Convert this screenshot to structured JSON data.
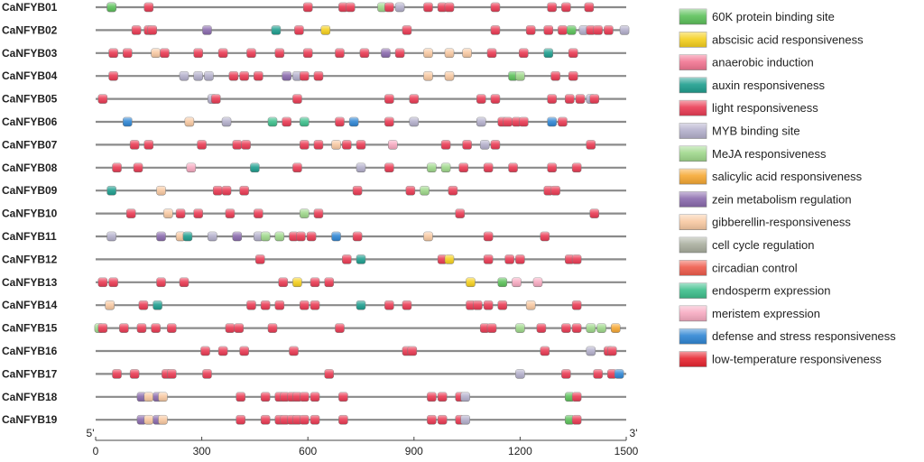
{
  "chart_data": {
    "type": "diagram",
    "xlim": [
      0,
      1500
    ],
    "axis": {
      "ticks": [
        0,
        300,
        600,
        900,
        1200,
        1500
      ],
      "tick_labels": [
        "0",
        "300",
        "600",
        "900",
        "1200",
        "1500"
      ],
      "start_label": "5'",
      "end_label": "3'"
    },
    "element_types": [
      {
        "name": "60K protein binding site",
        "color": "#5cc15a"
      },
      {
        "name": "abscisic acid responsiveness",
        "color": "#f5d01e"
      },
      {
        "name": "anaerobic induction",
        "color": "#f27592"
      },
      {
        "name": "auxin responsiveness",
        "color": "#1e9e8e"
      },
      {
        "name": "light responsiveness",
        "color": "#ea3b54"
      },
      {
        "name": "MYB binding site",
        "color": "#b4b0cc"
      },
      {
        "name": "MeJA responsiveness",
        "color": "#9fd88b"
      },
      {
        "name": "salicylic acid responsiveness",
        "color": "#f6a833"
      },
      {
        "name": "zein metabolism regulation",
        "color": "#8a6aad"
      },
      {
        "name": "gibberellin-responsiveness",
        "color": "#f8c9a2"
      },
      {
        "name": "cell cycle regulation",
        "color": "#a9ae9e"
      },
      {
        "name": "circadian control",
        "color": "#ef5b4b"
      },
      {
        "name": "endosperm expression",
        "color": "#3dbf8c"
      },
      {
        "name": "meristem expression",
        "color": "#f7aac1"
      },
      {
        "name": "defense and stress responsiveness",
        "color": "#2f86d4"
      },
      {
        "name": "low-temperature responsiveness",
        "color": "#e7242f"
      }
    ],
    "genes": [
      {
        "name": "CaNFYB01",
        "elements": [
          [
            45,
            3
          ],
          [
            45,
            0
          ],
          [
            150,
            4
          ],
          [
            600,
            4
          ],
          [
            700,
            4
          ],
          [
            720,
            4
          ],
          [
            810,
            6
          ],
          [
            830,
            4
          ],
          [
            860,
            5
          ],
          [
            940,
            4
          ],
          [
            980,
            4
          ],
          [
            1000,
            4
          ],
          [
            1130,
            4
          ],
          [
            1290,
            4
          ],
          [
            1330,
            4
          ],
          [
            1395,
            4
          ]
        ]
      },
      {
        "name": "CaNFYB02",
        "elements": [
          [
            115,
            4
          ],
          [
            150,
            4
          ],
          [
            160,
            4
          ],
          [
            315,
            8
          ],
          [
            510,
            3
          ],
          [
            575,
            4
          ],
          [
            650,
            1
          ],
          [
            880,
            4
          ],
          [
            1130,
            4
          ],
          [
            1230,
            4
          ],
          [
            1280,
            4
          ],
          [
            1320,
            4
          ],
          [
            1345,
            0
          ],
          [
            1380,
            5
          ],
          [
            1400,
            4
          ],
          [
            1420,
            4
          ],
          [
            1450,
            4
          ],
          [
            1495,
            5
          ]
        ]
      },
      {
        "name": "CaNFYB03",
        "elements": [
          [
            50,
            4
          ],
          [
            90,
            4
          ],
          [
            170,
            9
          ],
          [
            195,
            4
          ],
          [
            290,
            4
          ],
          [
            360,
            4
          ],
          [
            440,
            4
          ],
          [
            520,
            4
          ],
          [
            600,
            4
          ],
          [
            690,
            4
          ],
          [
            760,
            4
          ],
          [
            820,
            8
          ],
          [
            860,
            4
          ],
          [
            940,
            9
          ],
          [
            1000,
            9
          ],
          [
            1050,
            9
          ],
          [
            1120,
            4
          ],
          [
            1210,
            4
          ],
          [
            1280,
            3
          ],
          [
            1350,
            4
          ]
        ]
      },
      {
        "name": "CaNFYB04",
        "elements": [
          [
            50,
            4
          ],
          [
            250,
            5
          ],
          [
            290,
            5
          ],
          [
            320,
            5
          ],
          [
            390,
            4
          ],
          [
            420,
            4
          ],
          [
            460,
            4
          ],
          [
            540,
            8
          ],
          [
            570,
            5
          ],
          [
            590,
            4
          ],
          [
            630,
            4
          ],
          [
            940,
            9
          ],
          [
            1000,
            9
          ],
          [
            1180,
            0
          ],
          [
            1200,
            6
          ],
          [
            1300,
            4
          ],
          [
            1350,
            4
          ]
        ]
      },
      {
        "name": "CaNFYB05",
        "elements": [
          [
            20,
            4
          ],
          [
            330,
            5
          ],
          [
            340,
            4
          ],
          [
            570,
            4
          ],
          [
            830,
            4
          ],
          [
            900,
            4
          ],
          [
            1090,
            4
          ],
          [
            1130,
            4
          ],
          [
            1290,
            4
          ],
          [
            1340,
            4
          ],
          [
            1370,
            4
          ],
          [
            1400,
            5
          ],
          [
            1410,
            4
          ]
        ]
      },
      {
        "name": "CaNFYB06",
        "elements": [
          [
            90,
            14
          ],
          [
            265,
            9
          ],
          [
            370,
            5
          ],
          [
            500,
            12
          ],
          [
            540,
            4
          ],
          [
            590,
            12
          ],
          [
            690,
            4
          ],
          [
            730,
            14
          ],
          [
            830,
            4
          ],
          [
            900,
            5
          ],
          [
            1090,
            5
          ],
          [
            1150,
            4
          ],
          [
            1165,
            4
          ],
          [
            1190,
            4
          ],
          [
            1210,
            4
          ],
          [
            1290,
            14
          ],
          [
            1320,
            4
          ]
        ]
      },
      {
        "name": "CaNFYB07",
        "elements": [
          [
            110,
            4
          ],
          [
            150,
            4
          ],
          [
            300,
            4
          ],
          [
            400,
            4
          ],
          [
            425,
            4
          ],
          [
            590,
            4
          ],
          [
            630,
            4
          ],
          [
            680,
            9
          ],
          [
            710,
            4
          ],
          [
            750,
            4
          ],
          [
            840,
            13
          ],
          [
            990,
            4
          ],
          [
            1050,
            4
          ],
          [
            1100,
            5
          ],
          [
            1130,
            4
          ],
          [
            1400,
            4
          ]
        ]
      },
      {
        "name": "CaNFYB08",
        "elements": [
          [
            60,
            4
          ],
          [
            120,
            4
          ],
          [
            270,
            13
          ],
          [
            450,
            3
          ],
          [
            570,
            4
          ],
          [
            750,
            5
          ],
          [
            830,
            4
          ],
          [
            950,
            6
          ],
          [
            990,
            6
          ],
          [
            1040,
            4
          ],
          [
            1110,
            4
          ],
          [
            1180,
            4
          ],
          [
            1290,
            4
          ],
          [
            1360,
            4
          ]
        ]
      },
      {
        "name": "CaNFYB09",
        "elements": [
          [
            45,
            3
          ],
          [
            185,
            9
          ],
          [
            345,
            4
          ],
          [
            370,
            4
          ],
          [
            420,
            4
          ],
          [
            740,
            4
          ],
          [
            890,
            4
          ],
          [
            930,
            6
          ],
          [
            1010,
            4
          ],
          [
            1280,
            4
          ],
          [
            1300,
            4
          ]
        ]
      },
      {
        "name": "CaNFYB10",
        "elements": [
          [
            100,
            4
          ],
          [
            205,
            9
          ],
          [
            240,
            4
          ],
          [
            290,
            4
          ],
          [
            380,
            4
          ],
          [
            460,
            4
          ],
          [
            590,
            6
          ],
          [
            630,
            4
          ],
          [
            1030,
            4
          ],
          [
            1410,
            4
          ]
        ]
      },
      {
        "name": "CaNFYB11",
        "elements": [
          [
            45,
            5
          ],
          [
            185,
            8
          ],
          [
            240,
            9
          ],
          [
            260,
            3
          ],
          [
            330,
            5
          ],
          [
            400,
            8
          ],
          [
            460,
            5
          ],
          [
            480,
            6
          ],
          [
            520,
            6
          ],
          [
            560,
            4
          ],
          [
            580,
            4
          ],
          [
            610,
            4
          ],
          [
            680,
            14
          ],
          [
            740,
            4
          ],
          [
            940,
            9
          ],
          [
            1110,
            4
          ],
          [
            1270,
            4
          ]
        ]
      },
      {
        "name": "CaNFYB12",
        "elements": [
          [
            465,
            4
          ],
          [
            710,
            4
          ],
          [
            750,
            3
          ],
          [
            980,
            4
          ],
          [
            1000,
            1
          ],
          [
            1110,
            4
          ],
          [
            1170,
            4
          ],
          [
            1200,
            4
          ],
          [
            1340,
            4
          ],
          [
            1360,
            4
          ]
        ]
      },
      {
        "name": "CaNFYB13",
        "elements": [
          [
            20,
            4
          ],
          [
            50,
            4
          ],
          [
            185,
            4
          ],
          [
            250,
            4
          ],
          [
            530,
            4
          ],
          [
            570,
            1
          ],
          [
            620,
            4
          ],
          [
            660,
            4
          ],
          [
            1060,
            1
          ],
          [
            1150,
            0
          ],
          [
            1190,
            13
          ],
          [
            1250,
            13
          ]
        ]
      },
      {
        "name": "CaNFYB14",
        "elements": [
          [
            40,
            9
          ],
          [
            135,
            4
          ],
          [
            175,
            3
          ],
          [
            440,
            4
          ],
          [
            480,
            4
          ],
          [
            520,
            4
          ],
          [
            590,
            4
          ],
          [
            620,
            4
          ],
          [
            750,
            3
          ],
          [
            830,
            4
          ],
          [
            880,
            4
          ],
          [
            1060,
            4
          ],
          [
            1080,
            4
          ],
          [
            1110,
            4
          ],
          [
            1150,
            4
          ],
          [
            1230,
            9
          ],
          [
            1360,
            4
          ]
        ]
      },
      {
        "name": "CaNFYB15",
        "elements": [
          [
            10,
            6
          ],
          [
            20,
            4
          ],
          [
            80,
            4
          ],
          [
            130,
            4
          ],
          [
            170,
            4
          ],
          [
            215,
            4
          ],
          [
            380,
            4
          ],
          [
            405,
            4
          ],
          [
            500,
            4
          ],
          [
            690,
            4
          ],
          [
            1100,
            4
          ],
          [
            1120,
            4
          ],
          [
            1200,
            6
          ],
          [
            1260,
            4
          ],
          [
            1330,
            4
          ],
          [
            1360,
            4
          ],
          [
            1400,
            6
          ],
          [
            1430,
            6
          ],
          [
            1470,
            7
          ]
        ]
      },
      {
        "name": "CaNFYB16",
        "elements": [
          [
            310,
            4
          ],
          [
            360,
            4
          ],
          [
            420,
            4
          ],
          [
            560,
            4
          ],
          [
            880,
            4
          ],
          [
            895,
            4
          ],
          [
            1270,
            4
          ],
          [
            1400,
            5
          ],
          [
            1450,
            4
          ],
          [
            1460,
            4
          ]
        ]
      },
      {
        "name": "CaNFYB17",
        "elements": [
          [
            60,
            4
          ],
          [
            110,
            4
          ],
          [
            200,
            4
          ],
          [
            215,
            4
          ],
          [
            315,
            4
          ],
          [
            660,
            4
          ],
          [
            1200,
            5
          ],
          [
            1330,
            4
          ],
          [
            1420,
            4
          ],
          [
            1460,
            4
          ],
          [
            1480,
            14
          ]
        ]
      },
      {
        "name": "CaNFYB18",
        "elements": [
          [
            130,
            8
          ],
          [
            150,
            9
          ],
          [
            175,
            8
          ],
          [
            190,
            9
          ],
          [
            410,
            4
          ],
          [
            480,
            4
          ],
          [
            520,
            4
          ],
          [
            535,
            4
          ],
          [
            555,
            4
          ],
          [
            570,
            4
          ],
          [
            590,
            4
          ],
          [
            620,
            4
          ],
          [
            700,
            4
          ],
          [
            950,
            4
          ],
          [
            980,
            4
          ],
          [
            1030,
            4
          ],
          [
            1045,
            5
          ],
          [
            1340,
            0
          ],
          [
            1360,
            4
          ]
        ]
      },
      {
        "name": "CaNFYB19",
        "elements": [
          [
            130,
            8
          ],
          [
            150,
            9
          ],
          [
            175,
            8
          ],
          [
            190,
            9
          ],
          [
            410,
            4
          ],
          [
            480,
            4
          ],
          [
            520,
            4
          ],
          [
            535,
            4
          ],
          [
            555,
            4
          ],
          [
            570,
            4
          ],
          [
            590,
            4
          ],
          [
            620,
            4
          ],
          [
            700,
            4
          ],
          [
            950,
            4
          ],
          [
            980,
            4
          ],
          [
            1030,
            4
          ],
          [
            1045,
            5
          ],
          [
            1340,
            0
          ],
          [
            1360,
            4
          ]
        ]
      }
    ]
  }
}
